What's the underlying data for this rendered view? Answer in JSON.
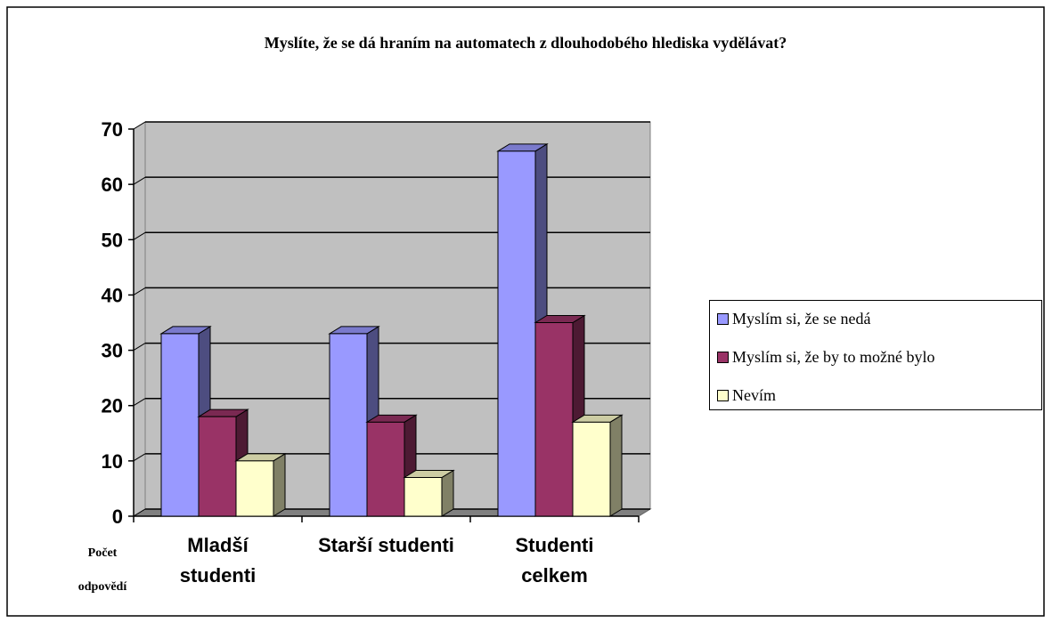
{
  "chart_data": {
    "type": "bar3d",
    "title": "Myslíte, že se dá hraním na automatech z dlouhodobého hlediska vydělávat?",
    "ylabel": "Počet odpovědí",
    "categories": [
      "Mladší studenti",
      "Starší studenti",
      "Studenti celkem"
    ],
    "series": [
      {
        "name": "Myslím si, že se nedá",
        "color": "#9999ff",
        "values": [
          33,
          33,
          66
        ]
      },
      {
        "name": "Myslím si, že by to možné bylo",
        "color": "#993366",
        "values": [
          18,
          17,
          35
        ]
      },
      {
        "name": "Nevím",
        "color": "#ffffcc",
        "values": [
          10,
          7,
          17
        ]
      }
    ],
    "ylim": [
      0,
      70
    ],
    "yticks": [
      0,
      10,
      20,
      30,
      40,
      50,
      60,
      70
    ],
    "grid": true,
    "legend": "right"
  }
}
